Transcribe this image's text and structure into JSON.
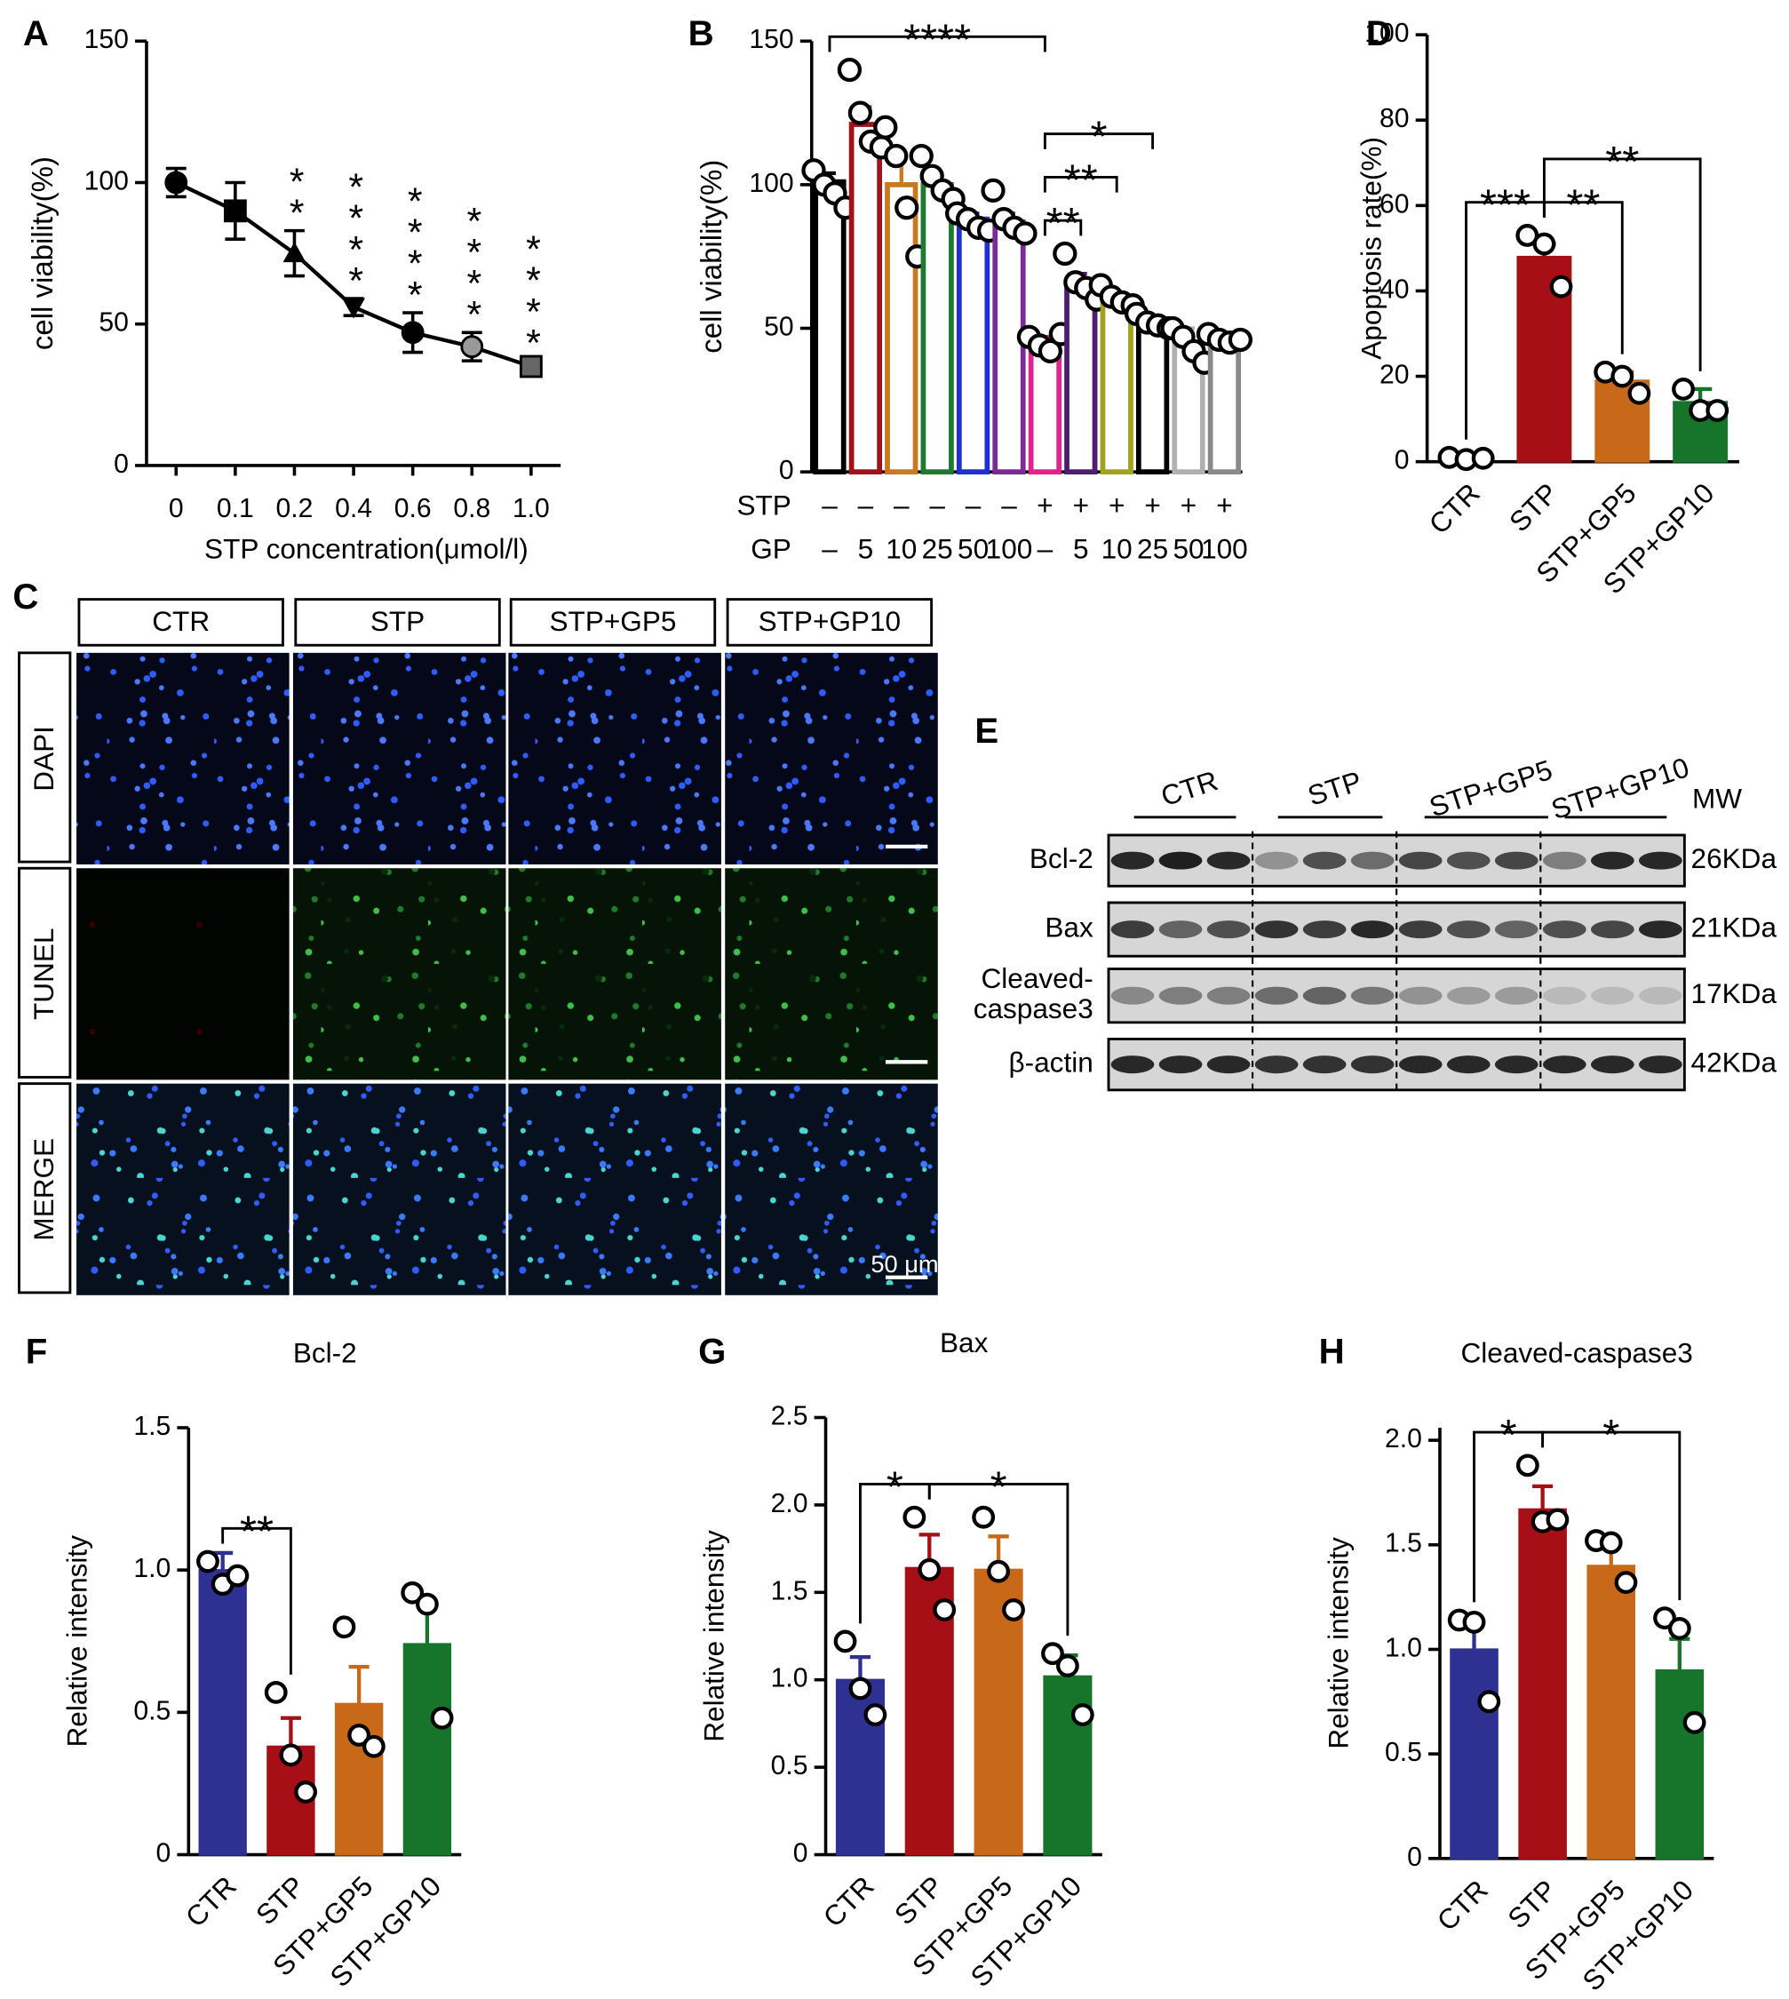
{
  "chart_data": [
    {
      "panel": "A",
      "type": "line",
      "categories": [
        "0",
        "0.1",
        "0.2",
        "0.4",
        "0.6",
        "0.8",
        "1.0"
      ],
      "values": [
        100,
        90,
        75,
        56,
        47,
        42,
        35
      ],
      "errors": [
        5,
        10,
        8,
        3,
        7,
        5,
        2
      ],
      "markers": [
        "circle",
        "square",
        "triangle",
        "triangle-down",
        "circle",
        "circle",
        "square"
      ],
      "marker_colors": [
        "#000000",
        "#000000",
        "#000000",
        "#000000",
        "#000000",
        "#999999",
        "#666666"
      ],
      "color": "#000000",
      "value_annotations": [
        null,
        null,
        "**",
        "****",
        "****",
        "****",
        "****"
      ],
      "ylim": [
        0,
        150
      ],
      "yticks": [
        0,
        50,
        100,
        150
      ],
      "ylabel": "cell viability(%)",
      "xlabel": "STP concentration(μmol/l)"
    },
    {
      "panel": "B",
      "type": "bar",
      "bar_style": "outline",
      "rows": [
        {
          "name": "STP",
          "labels": [
            "–",
            "–",
            "–",
            "–",
            "–",
            "–",
            "+",
            "+",
            "+",
            "+",
            "+",
            "+"
          ]
        },
        {
          "name": "GP",
          "labels": [
            "–",
            "5",
            "10",
            "25",
            "50",
            "100",
            "–",
            "5",
            "10",
            "25",
            "50",
            "100"
          ]
        }
      ],
      "values": [
        101,
        121,
        100,
        100,
        88,
        87,
        45,
        65,
        60,
        52,
        45,
        46
      ],
      "errors": [
        3,
        6,
        10,
        4,
        2,
        3,
        2,
        4,
        2,
        2,
        5,
        1
      ],
      "points": [
        [
          105,
          100,
          97,
          92
        ],
        [
          140,
          125,
          115,
          113
        ],
        [
          120,
          110,
          92,
          75
        ],
        [
          110,
          103,
          98,
          95
        ],
        [
          90,
          88,
          85,
          84
        ],
        [
          98,
          88,
          85,
          83
        ],
        [
          47,
          44,
          42,
          48
        ],
        [
          76,
          66,
          64,
          60
        ],
        [
          65,
          61,
          59,
          58
        ],
        [
          55,
          52,
          51,
          50
        ],
        [
          50,
          47,
          42,
          38
        ],
        [
          48,
          46,
          45,
          46
        ]
      ],
      "colors": [
        "#000000",
        "#a3121a",
        "#c87a1e",
        "#1d7a2e",
        "#1f2fd0",
        "#7b2a9a",
        "#e0238f",
        "#4b1f6e",
        "#a2a21f",
        "#000000",
        "#b0b0b0",
        "#8a8a8a"
      ],
      "ylim": [
        0,
        150
      ],
      "yticks": [
        0,
        50,
        100,
        150
      ],
      "ylabel": "cell viability(%)",
      "annotations": [
        {
          "label": "**",
          "between": [
            6,
            7
          ]
        },
        {
          "label": "**",
          "between": [
            6,
            8
          ]
        },
        {
          "label": "*",
          "between": [
            6,
            9
          ]
        },
        {
          "label": "****",
          "between": [
            0,
            6
          ]
        }
      ]
    },
    {
      "panel": "D",
      "type": "bar",
      "categories": [
        "CTR",
        "STP",
        "STP+GP5",
        "STP+GP10"
      ],
      "values": [
        1,
        48,
        19,
        14
      ],
      "errors": [
        0.5,
        3,
        2,
        3
      ],
      "points": [
        [
          1,
          0.5,
          0.8
        ],
        [
          53,
          51,
          41
        ],
        [
          21,
          20,
          16
        ],
        [
          17,
          12,
          12
        ]
      ],
      "colors": [
        "#2e3192",
        "#a50f15",
        "#c8691a",
        "#16742b"
      ],
      "ylim": [
        0,
        100
      ],
      "yticks": [
        0,
        20,
        40,
        60,
        80,
        100
      ],
      "ylabel": "Apoptosis rate(%)",
      "annotations": [
        {
          "label": "***",
          "between": [
            0,
            1
          ]
        },
        {
          "label": "**",
          "between": [
            1,
            2
          ]
        },
        {
          "label": "**",
          "between": [
            1,
            3
          ]
        }
      ]
    },
    {
      "panel": "F",
      "type": "bar",
      "title": "Bcl-2",
      "categories": [
        "CTR",
        "STP",
        "STP+GP5",
        "STP+GP10"
      ],
      "values": [
        1.0,
        0.38,
        0.53,
        0.74
      ],
      "errors": [
        0.06,
        0.1,
        0.13,
        0.14
      ],
      "points": [
        [
          1.03,
          0.95,
          0.98
        ],
        [
          0.57,
          0.35,
          0.22
        ],
        [
          0.8,
          0.42,
          0.38
        ],
        [
          0.92,
          0.88,
          0.48
        ]
      ],
      "colors": [
        "#2e3192",
        "#a50f15",
        "#c8691a",
        "#16742b"
      ],
      "ylim": [
        0,
        1.5
      ],
      "yticks": [
        0,
        0.5,
        {
          "value": 1,
          "label": "1.0"
        },
        1.5
      ],
      "ylabel": "Relative intensity",
      "annotations": [
        {
          "label": "**",
          "between": [
            0,
            1
          ]
        }
      ]
    },
    {
      "panel": "G",
      "type": "bar",
      "title": "Bax",
      "categories": [
        "CTR",
        "STP",
        "STP+GP5",
        "STP+GP10"
      ],
      "values": [
        1.0,
        1.64,
        1.63,
        1.02
      ],
      "errors": [
        0.13,
        0.19,
        0.19,
        0.12
      ],
      "points": [
        [
          1.22,
          0.95,
          0.8
        ],
        [
          1.93,
          1.63,
          1.4
        ],
        [
          1.93,
          1.62,
          1.4
        ],
        [
          1.15,
          1.08,
          0.8
        ]
      ],
      "colors": [
        "#2e3192",
        "#a50f15",
        "#c8691a",
        "#16742b"
      ],
      "ylim": [
        0,
        2.5
      ],
      "yticks": [
        0,
        0.5,
        {
          "value": 1,
          "label": "1.0"
        },
        1.5,
        {
          "value": 2,
          "label": "2.0"
        },
        2.5
      ],
      "ylabel": "Relative intensity",
      "annotations": [
        {
          "label": "*",
          "between": [
            0,
            1
          ]
        },
        {
          "label": "*",
          "between": [
            1,
            3
          ]
        }
      ]
    },
    {
      "panel": "H",
      "type": "bar",
      "title": "Cleaved-caspase3",
      "categories": [
        "CTR",
        "STP",
        "STP+GP5",
        "STP+GP10"
      ],
      "values": [
        1.0,
        1.67,
        1.4,
        0.9
      ],
      "errors": [
        0.13,
        0.11,
        0.1,
        0.15
      ],
      "points": [
        [
          1.14,
          1.13,
          0.75
        ],
        [
          1.88,
          1.61,
          1.62
        ],
        [
          1.52,
          1.51,
          1.32
        ],
        [
          1.15,
          1.1,
          0.65
        ]
      ],
      "colors": [
        "#2e3192",
        "#a50f15",
        "#c8691a",
        "#16742b"
      ],
      "ylim": [
        0,
        2.06
      ],
      "yticks": [
        0,
        0.5,
        {
          "value": 1,
          "label": "1.0"
        },
        1.5,
        {
          "value": 2,
          "label": "2.0"
        }
      ],
      "ylabel": "Relative intensity",
      "annotations": [
        {
          "label": "*",
          "between": [
            0,
            1
          ]
        },
        {
          "label": "*",
          "between": [
            1,
            3
          ]
        }
      ]
    }
  ],
  "micrograph": {
    "panel": "C",
    "columns": [
      "CTR",
      "STP",
      "STP+GP5",
      "STP+GP10"
    ],
    "rows": [
      "DAPI",
      "TUNEL",
      "MERGE"
    ],
    "scale_bar": "50 μm"
  },
  "blot": {
    "panel": "E",
    "groups": [
      "CTR",
      "STP",
      "STP+GP5",
      "STP+GP10"
    ],
    "mw_header": "MW",
    "rows": [
      {
        "label": [
          "Bcl-2"
        ],
        "mw": "26KDa"
      },
      {
        "label": [
          "Bax"
        ],
        "mw": "21KDa"
      },
      {
        "label": [
          "Cleaved-",
          "caspase3"
        ],
        "mw": "17KDa"
      },
      {
        "label": [
          "β-actin"
        ],
        "mw": "42KDa"
      }
    ]
  }
}
